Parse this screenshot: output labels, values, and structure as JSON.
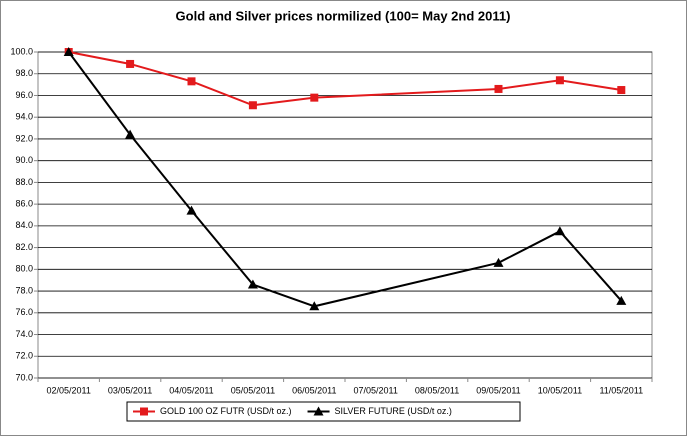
{
  "chart_data": {
    "type": "line",
    "title": "Gold and Silver prices normilized (100= May 2nd 2011)",
    "xticks": [
      "02/05/2011",
      "03/05/2011",
      "04/05/2011",
      "05/05/2011",
      "06/05/2011",
      "07/05/2011",
      "08/05/2011",
      "09/05/2011",
      "10/05/2011",
      "11/05/2011"
    ],
    "x": [
      "02/05/2011",
      "03/05/2011",
      "04/05/2011",
      "05/05/2011",
      "06/05/2011",
      "09/05/2011",
      "10/05/2011",
      "11/05/2011"
    ],
    "series": [
      {
        "name": "GOLD 100 OZ FUTR (USD/t oz.)",
        "color": "#e31a1c",
        "marker": "square",
        "values": [
          100.0,
          98.9,
          97.3,
          95.1,
          95.8,
          96.6,
          97.4,
          96.5
        ]
      },
      {
        "name": "SILVER FUTURE (USD/t oz.)",
        "color": "#000000",
        "marker": "triangle",
        "values": [
          100.0,
          92.4,
          85.4,
          78.6,
          76.6,
          80.6,
          83.5,
          77.1
        ]
      }
    ],
    "ylim": [
      70,
      100
    ],
    "yticks": [
      {
        "value": 70,
        "label": "70.0"
      },
      {
        "value": 72,
        "label": "72.0"
      },
      {
        "value": 74,
        "label": "74.0"
      },
      {
        "value": 76,
        "label": "76.0"
      },
      {
        "value": 78,
        "label": "78.0"
      },
      {
        "value": 80,
        "label": "80.0"
      },
      {
        "value": 82,
        "label": "82.0"
      },
      {
        "value": 84,
        "label": "84.0"
      },
      {
        "value": 86,
        "label": "86.0"
      },
      {
        "value": 88,
        "label": "88.0"
      },
      {
        "value": 90,
        "label": "90.0"
      },
      {
        "value": 92,
        "label": "92.0"
      },
      {
        "value": 94,
        "label": "94.0"
      },
      {
        "value": 96,
        "label": "96.0"
      },
      {
        "value": 98,
        "label": "98.0"
      },
      {
        "value": 100,
        "label": "100.0"
      }
    ],
    "grid": true,
    "legend": "bottom"
  }
}
